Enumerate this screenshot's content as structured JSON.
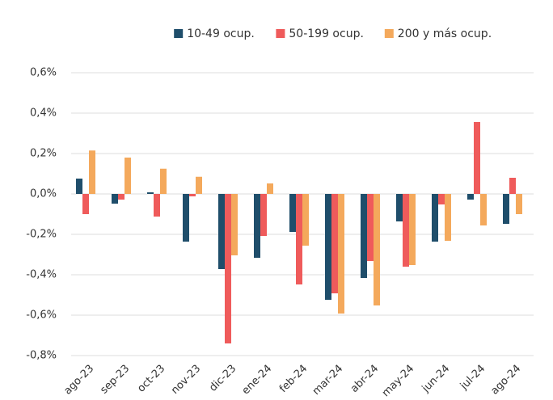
{
  "chart_data": {
    "type": "bar",
    "categories": [
      "ago-23",
      "sep-23",
      "oct-23",
      "nov-23",
      "dic-23",
      "ene-24",
      "feb-24",
      "mar-24",
      "abr-24",
      "may-24",
      "jun-24",
      "jul-24",
      "ago-24"
    ],
    "series": [
      {
        "name": "10-49 ocup.",
        "color": "#1f4e6b",
        "values": [
          0.076,
          -0.048,
          0.008,
          -0.236,
          -0.372,
          -0.316,
          -0.188,
          -0.524,
          -0.416,
          -0.136,
          -0.236,
          -0.028,
          -0.148
        ]
      },
      {
        "name": "50-199 ocup.",
        "color": "#ef5b5b",
        "values": [
          -0.1,
          -0.028,
          -0.112,
          -0.012,
          -0.74,
          -0.208,
          -0.448,
          -0.492,
          -0.332,
          -0.36,
          -0.052,
          0.356,
          0.08
        ]
      },
      {
        "name": "200 y más ocup.",
        "color": "#f4a95c",
        "values": [
          0.215,
          0.18,
          0.125,
          0.085,
          -0.304,
          0.052,
          -0.256,
          -0.592,
          -0.552,
          -0.352,
          -0.232,
          -0.156,
          -0.1
        ]
      }
    ],
    "ylim": [
      -0.8,
      0.6
    ],
    "yticks": [
      {
        "value": -0.8,
        "label": "-0,8%"
      },
      {
        "value": -0.6,
        "label": "-0,6%"
      },
      {
        "value": -0.4,
        "label": "-0,4%"
      },
      {
        "value": -0.2,
        "label": "-0,2%"
      },
      {
        "value": 0,
        "label": "0,0%"
      },
      {
        "value": 0.2,
        "label": "0,2%"
      },
      {
        "value": 0.4,
        "label": "0,4%"
      },
      {
        "value": 0.6,
        "label": "0,6%"
      }
    ],
    "grid": true,
    "legend": "top"
  }
}
